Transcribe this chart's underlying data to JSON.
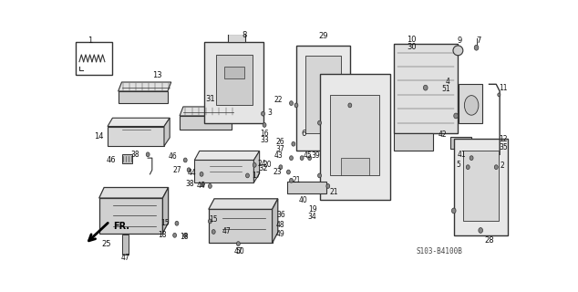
{
  "bg_color": "#ffffff",
  "fig_width": 6.34,
  "fig_height": 3.2,
  "dpi": 100,
  "diagram_code": "S103-B4100B",
  "line_color": "#333333",
  "label_fs": 5.5,
  "label_color": "#111111"
}
